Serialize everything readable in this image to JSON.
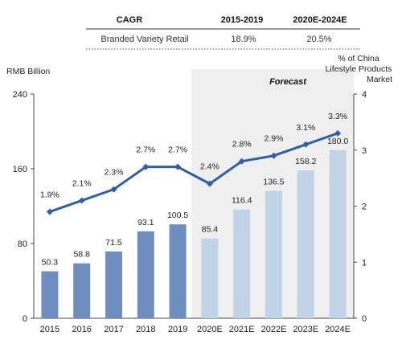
{
  "table": {
    "headers": [
      "CAGR",
      "2015-2019",
      "2020E-2024E"
    ],
    "row": [
      "Branded Variety Retail",
      "18.9%",
      "20.5%"
    ]
  },
  "chart_data": {
    "type": "bar",
    "categories": [
      "2015",
      "2016",
      "2017",
      "2018",
      "2019",
      "2020E",
      "2021E",
      "2022E",
      "2023E",
      "2024E"
    ],
    "series": [
      {
        "values": [
          50.3,
          58.8,
          71.5,
          93.1,
          100.5,
          85.4,
          116.4,
          136.5,
          158.2,
          180.0
        ],
        "labels": [
          "50.3",
          "58.8",
          "71.5",
          "93.1",
          "100.5",
          "85.4",
          "116.4",
          "136.5",
          "158.2",
          "180.0"
        ],
        "axis": "left",
        "type": "bar"
      },
      {
        "values": [
          1.9,
          2.1,
          2.3,
          2.7,
          2.7,
          2.4,
          2.8,
          2.9,
          3.1,
          3.3
        ],
        "labels": [
          "1.9%",
          "2.1%",
          "2.3%",
          "2.7%",
          "2.7%",
          "2.4%",
          "2.8%",
          "2.9%",
          "3.1%",
          "3.3%"
        ],
        "axis": "right",
        "type": "line"
      }
    ],
    "ylabel": "RMB Billion",
    "y2label": [
      "% of China",
      "Lifestyle Products",
      "Market"
    ],
    "ylim": [
      0,
      240
    ],
    "yticks": [
      "0",
      "80",
      "160",
      "240"
    ],
    "y2lim": [
      0,
      4
    ],
    "y2ticks": [
      "0",
      "1",
      "2",
      "3",
      "4"
    ],
    "forecast_label": "Forecast",
    "forecast_start_index": 5,
    "grid": false,
    "colors": {
      "bar_actual": "#6d8ebf",
      "bar_forecast": "#c3d3e6",
      "line": "#2f5fa6",
      "forecast_shade": "#efefef"
    }
  }
}
